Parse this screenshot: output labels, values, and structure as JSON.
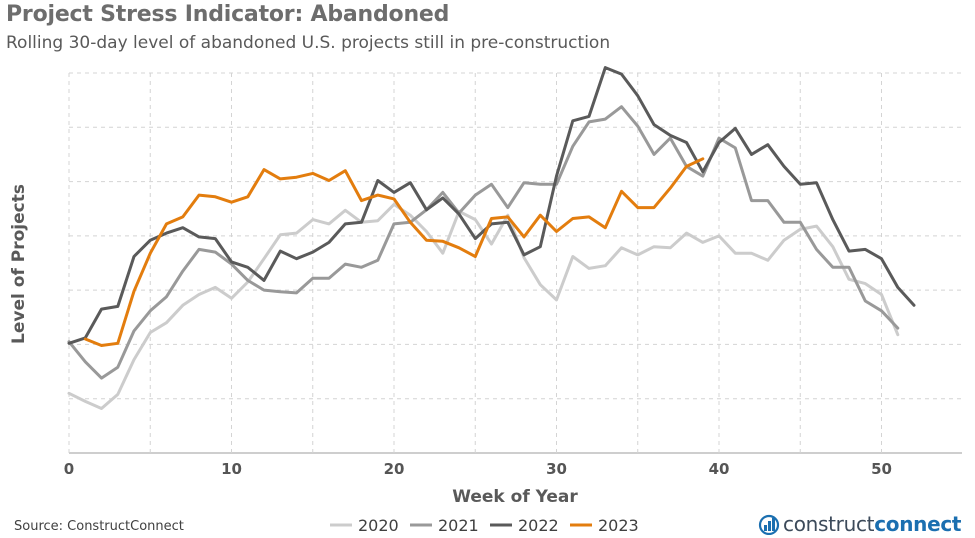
{
  "chart_data": {
    "type": "line",
    "title": "Project Stress Indicator: Abandoned",
    "subtitle": "Rolling 30-day level of abandoned U.S. projects still in pre-construction",
    "xlabel": "Week of Year",
    "ylabel": "Level of Projects",
    "xlim": [
      0,
      53
    ],
    "ylim": [
      0,
      7
    ],
    "x_ticks": [
      0,
      10,
      20,
      30,
      40,
      50
    ],
    "y_ticks_labeled": false,
    "grid": true,
    "legend_position": "bottom-center",
    "series": [
      {
        "name": "2020",
        "color": "#cccccc",
        "values": [
          1.1,
          0.95,
          0.82,
          1.08,
          1.72,
          2.22,
          2.4,
          2.72,
          2.92,
          3.05,
          2.85,
          3.15,
          3.58,
          4.02,
          4.05,
          4.3,
          4.22,
          4.47,
          4.25,
          4.28,
          4.58,
          4.38,
          4.08,
          3.68,
          4.45,
          4.3,
          3.85,
          4.38,
          3.6,
          3.1,
          2.82,
          3.62,
          3.4,
          3.45,
          3.78,
          3.65,
          3.8,
          3.78,
          4.05,
          3.88,
          4.0,
          3.68,
          3.68,
          3.55,
          3.92,
          4.12,
          4.18,
          3.8,
          3.2,
          3.12,
          2.92,
          2.18
        ]
      },
      {
        "name": "2021",
        "color": "#999999",
        "values": [
          2.05,
          1.68,
          1.38,
          1.58,
          2.25,
          2.62,
          2.88,
          3.35,
          3.75,
          3.7,
          3.48,
          3.18,
          3.0,
          2.97,
          2.95,
          3.22,
          3.22,
          3.48,
          3.42,
          3.55,
          4.22,
          4.25,
          4.48,
          4.8,
          4.42,
          4.75,
          4.95,
          4.52,
          4.98,
          4.95,
          4.95,
          5.65,
          6.1,
          6.15,
          6.38,
          6.02,
          5.5,
          5.8,
          5.28,
          5.1,
          5.8,
          5.62,
          4.65,
          4.65,
          4.25,
          4.25,
          3.75,
          3.42,
          3.42,
          2.8,
          2.62,
          2.3
        ]
      },
      {
        "name": "2022",
        "color": "#5a5a5a",
        "values": [
          2.02,
          2.12,
          2.65,
          2.7,
          3.62,
          3.92,
          4.05,
          4.15,
          3.98,
          3.95,
          3.52,
          3.42,
          3.18,
          3.72,
          3.58,
          3.7,
          3.88,
          4.22,
          4.25,
          5.02,
          4.8,
          4.98,
          4.48,
          4.7,
          4.4,
          3.95,
          4.22,
          4.25,
          3.65,
          3.8,
          5.1,
          6.12,
          6.2,
          7.1,
          6.98,
          6.58,
          6.05,
          5.85,
          5.72,
          5.18,
          5.72,
          5.98,
          5.5,
          5.68,
          5.28,
          4.95,
          4.98,
          4.3,
          3.72,
          3.75,
          3.58,
          3.05,
          2.72
        ]
      },
      {
        "name": "2023",
        "color": "#e37d0e",
        "values": [
          null,
          2.1,
          1.98,
          2.02,
          2.98,
          3.68,
          4.22,
          4.35,
          4.75,
          4.72,
          4.62,
          4.72,
          5.22,
          5.05,
          5.08,
          5.15,
          5.02,
          5.2,
          4.65,
          4.75,
          4.68,
          4.25,
          3.92,
          3.9,
          3.78,
          3.62,
          4.32,
          4.35,
          3.98,
          4.38,
          4.08,
          4.32,
          4.35,
          4.15,
          4.82,
          4.52,
          4.52,
          4.88,
          5.28,
          5.42
        ]
      }
    ]
  },
  "footer": {
    "source": "Source: ConstructConnect",
    "logo_prefix": "construct",
    "logo_suffix": "connect"
  }
}
